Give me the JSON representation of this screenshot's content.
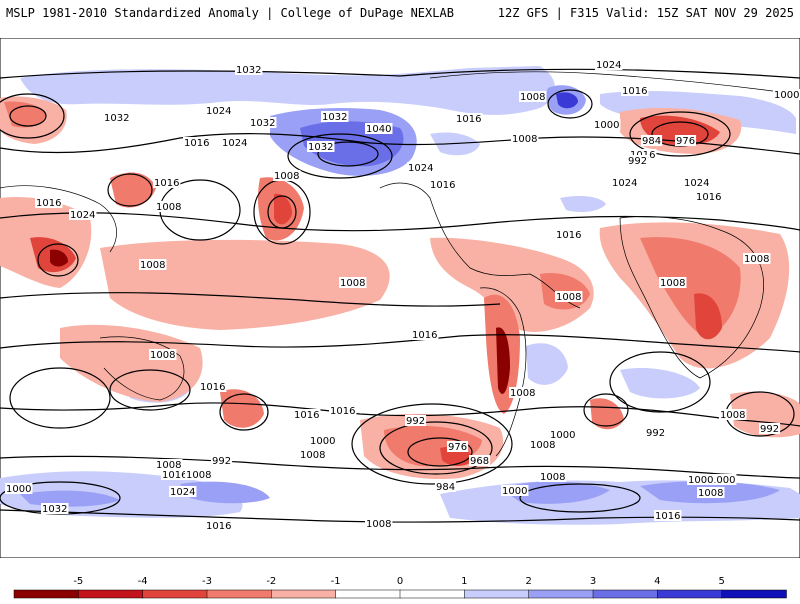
{
  "header": {
    "left": "MSLP 1981-2010 Standardized Anomaly | College of DuPage NEXLAB",
    "right": "12Z GFS | F315 Valid: 15Z SAT NOV 29 2025"
  },
  "colorbar": {
    "ticks": [
      "-5",
      "-4",
      "-3",
      "-2",
      "-1",
      "0",
      "1",
      "2",
      "3",
      "4",
      "5"
    ],
    "colors": [
      "#8b0000",
      "#c4141b",
      "#e0443b",
      "#f07a6c",
      "#f9b1a5",
      "#ffffff",
      "#ffffff",
      "#c8cdfb",
      "#9aa0f5",
      "#6a6fe8",
      "#3a3ad6",
      "#1010b8"
    ]
  },
  "isobar_labels": [
    {
      "text": "1032"
    },
    {
      "text": "1024"
    },
    {
      "text": "1008"
    },
    {
      "text": "1016"
    },
    {
      "text": "1000"
    },
    {
      "text": "1032"
    },
    {
      "text": "1024"
    },
    {
      "text": "1032"
    },
    {
      "text": "1032"
    },
    {
      "text": "1040"
    },
    {
      "text": "1016"
    },
    {
      "text": "1000"
    },
    {
      "text": "1008"
    },
    {
      "text": "984"
    },
    {
      "text": "976"
    },
    {
      "text": "1016"
    },
    {
      "text": "1024"
    },
    {
      "text": "1016"
    },
    {
      "text": "1032"
    },
    {
      "text": "1024"
    },
    {
      "text": "992"
    },
    {
      "text": "1008"
    },
    {
      "text": "1016"
    },
    {
      "text": "1024"
    },
    {
      "text": "1024"
    },
    {
      "text": "1008"
    },
    {
      "text": "1016"
    },
    {
      "text": "1024"
    },
    {
      "text": "1016"
    },
    {
      "text": "1016"
    },
    {
      "text": "1016"
    },
    {
      "text": "1008"
    },
    {
      "text": "1008"
    },
    {
      "text": "1008"
    },
    {
      "text": "1008"
    },
    {
      "text": "1008"
    },
    {
      "text": "1016"
    },
    {
      "text": "1008"
    },
    {
      "text": "1016"
    },
    {
      "text": "1016"
    },
    {
      "text": "1016"
    },
    {
      "text": "1008"
    },
    {
      "text": "1000"
    },
    {
      "text": "1008"
    },
    {
      "text": "992"
    },
    {
      "text": "1008"
    },
    {
      "text": "992"
    },
    {
      "text": "1016"
    },
    {
      "text": "1008"
    },
    {
      "text": "1000"
    },
    {
      "text": "992"
    },
    {
      "text": "976"
    },
    {
      "text": "968"
    },
    {
      "text": "984"
    },
    {
      "text": "1008"
    },
    {
      "text": "1000"
    },
    {
      "text": "992"
    },
    {
      "text": "1008"
    },
    {
      "text": "1000"
    },
    {
      "text": "1024"
    },
    {
      "text": "1032"
    },
    {
      "text": "1000"
    },
    {
      "text": "1008"
    },
    {
      "text": "1016"
    },
    {
      "text": "1008"
    },
    {
      "text": "1016"
    },
    {
      "text": "1000"
    },
    {
      "text": "1008"
    }
  ]
}
